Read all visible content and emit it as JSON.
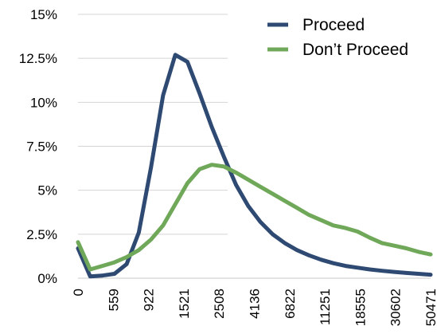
{
  "chart_data": {
    "type": "line",
    "title": "",
    "xlabel": "",
    "ylabel": "",
    "ylim": [
      0,
      15
    ],
    "y_ticks": [
      {
        "value": 0,
        "label": "0%"
      },
      {
        "value": 2.5,
        "label": "2.5%"
      },
      {
        "value": 5,
        "label": "5%"
      },
      {
        "value": 7.5,
        "label": "7.5%"
      },
      {
        "value": 10,
        "label": "10%"
      },
      {
        "value": 12.5,
        "label": "12.5%"
      },
      {
        "value": 15,
        "label": "15%"
      }
    ],
    "x_ticks": [
      "0",
      "559",
      "922",
      "1521",
      "2508",
      "4136",
      "6822",
      "11251",
      "18555",
      "30602",
      "50471"
    ],
    "grid": true,
    "legend_placement": "top-right",
    "series": [
      {
        "name": "Proceed",
        "color": "#2e4a72",
        "values": [
          1.7,
          0.1,
          0.15,
          0.25,
          0.8,
          2.6,
          6.3,
          10.4,
          12.7,
          12.3,
          10.5,
          8.6,
          6.9,
          5.3,
          4.1,
          3.2,
          2.5,
          2.0,
          1.6,
          1.3,
          1.05,
          0.85,
          0.7,
          0.6,
          0.5,
          0.42,
          0.36,
          0.3,
          0.25,
          0.2
        ]
      },
      {
        "name": "Don’t Proceed",
        "color": "#70a85a",
        "values": [
          2.05,
          0.5,
          0.7,
          0.9,
          1.2,
          1.6,
          2.2,
          3.0,
          4.2,
          5.4,
          6.2,
          6.45,
          6.35,
          6.0,
          5.6,
          5.2,
          4.8,
          4.4,
          4.0,
          3.6,
          3.3,
          3.0,
          2.85,
          2.65,
          2.3,
          2.0,
          1.85,
          1.7,
          1.5,
          1.35
        ]
      }
    ]
  }
}
